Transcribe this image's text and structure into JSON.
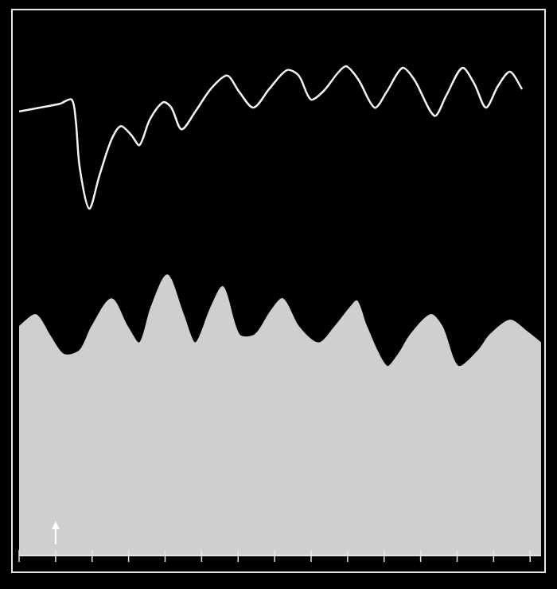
{
  "chart_data": {
    "type": "line",
    "series": [
      {
        "color": "#f4f4f4",
        "line_style": "solid",
        "x": [
          0,
          0.57,
          1.11,
          1.44,
          1.55,
          1.66,
          1.92,
          2.2,
          2.53,
          2.79,
          3.08,
          3.3,
          3.58,
          3.95,
          4.17,
          4.45,
          4.83,
          5.26,
          5.7,
          6.03,
          6.42,
          6.86,
          7.34,
          7.66,
          7.99,
          8.32,
          8.76,
          8.97,
          9.3,
          9.74,
          10.07,
          10.5,
          10.83,
          11.38,
          11.7,
          12.14,
          12.47,
          12.79,
          13.12,
          13.45,
          13.78
        ],
        "values": [
          81.7,
          82.4,
          83.1,
          83.9,
          80.2,
          71.4,
          63.8,
          69.9,
          76.5,
          79.0,
          77.3,
          75.5,
          80.2,
          83.4,
          82.4,
          78.4,
          81.7,
          85.9,
          88.3,
          85.3,
          82.4,
          85.9,
          89.3,
          88.3,
          83.9,
          85.3,
          89.0,
          90.0,
          87.5,
          82.4,
          85.3,
          89.7,
          87.5,
          80.9,
          84.6,
          89.7,
          86.8,
          82.4,
          86.4,
          89.0,
          85.8
        ]
      },
      {
        "color": "#cfcfcf",
        "type": "area",
        "x": [
          0,
          0.46,
          0.83,
          1.22,
          1.66,
          1.99,
          2.53,
          2.97,
          3.3,
          3.62,
          4.06,
          4.5,
          4.83,
          5.26,
          5.59,
          6.03,
          6.46,
          6.9,
          7.23,
          7.66,
          8.21,
          8.65,
          9.08,
          9.26,
          9.52,
          10.07,
          10.39,
          10.72,
          11.27,
          11.59,
          12.03,
          12.58,
          12.9,
          13.45,
          13.89,
          14.3
        ],
        "values": [
          42.1,
          44.3,
          40.6,
          37.0,
          37.7,
          42.1,
          47.2,
          42.1,
          39.1,
          45.7,
          51.6,
          44.3,
          39.1,
          45.7,
          49.4,
          40.6,
          40.6,
          45.0,
          47.2,
          42.1,
          39.1,
          42.1,
          45.7,
          46.8,
          42.1,
          34.8,
          37.0,
          40.6,
          44.3,
          42.1,
          34.8,
          37.7,
          40.6,
          43.3,
          41.3,
          39.1
        ]
      }
    ],
    "xlim": [
      0,
      14.3
    ],
    "xticks": [
      0,
      1,
      2,
      3,
      4,
      5,
      6,
      7,
      8,
      9,
      10,
      11,
      12,
      13,
      14
    ],
    "ylim": [
      0,
      100
    ],
    "grid": false,
    "tick_labels": false,
    "annotations": [
      {
        "x": 1,
        "marker": "arrow"
      }
    ]
  }
}
